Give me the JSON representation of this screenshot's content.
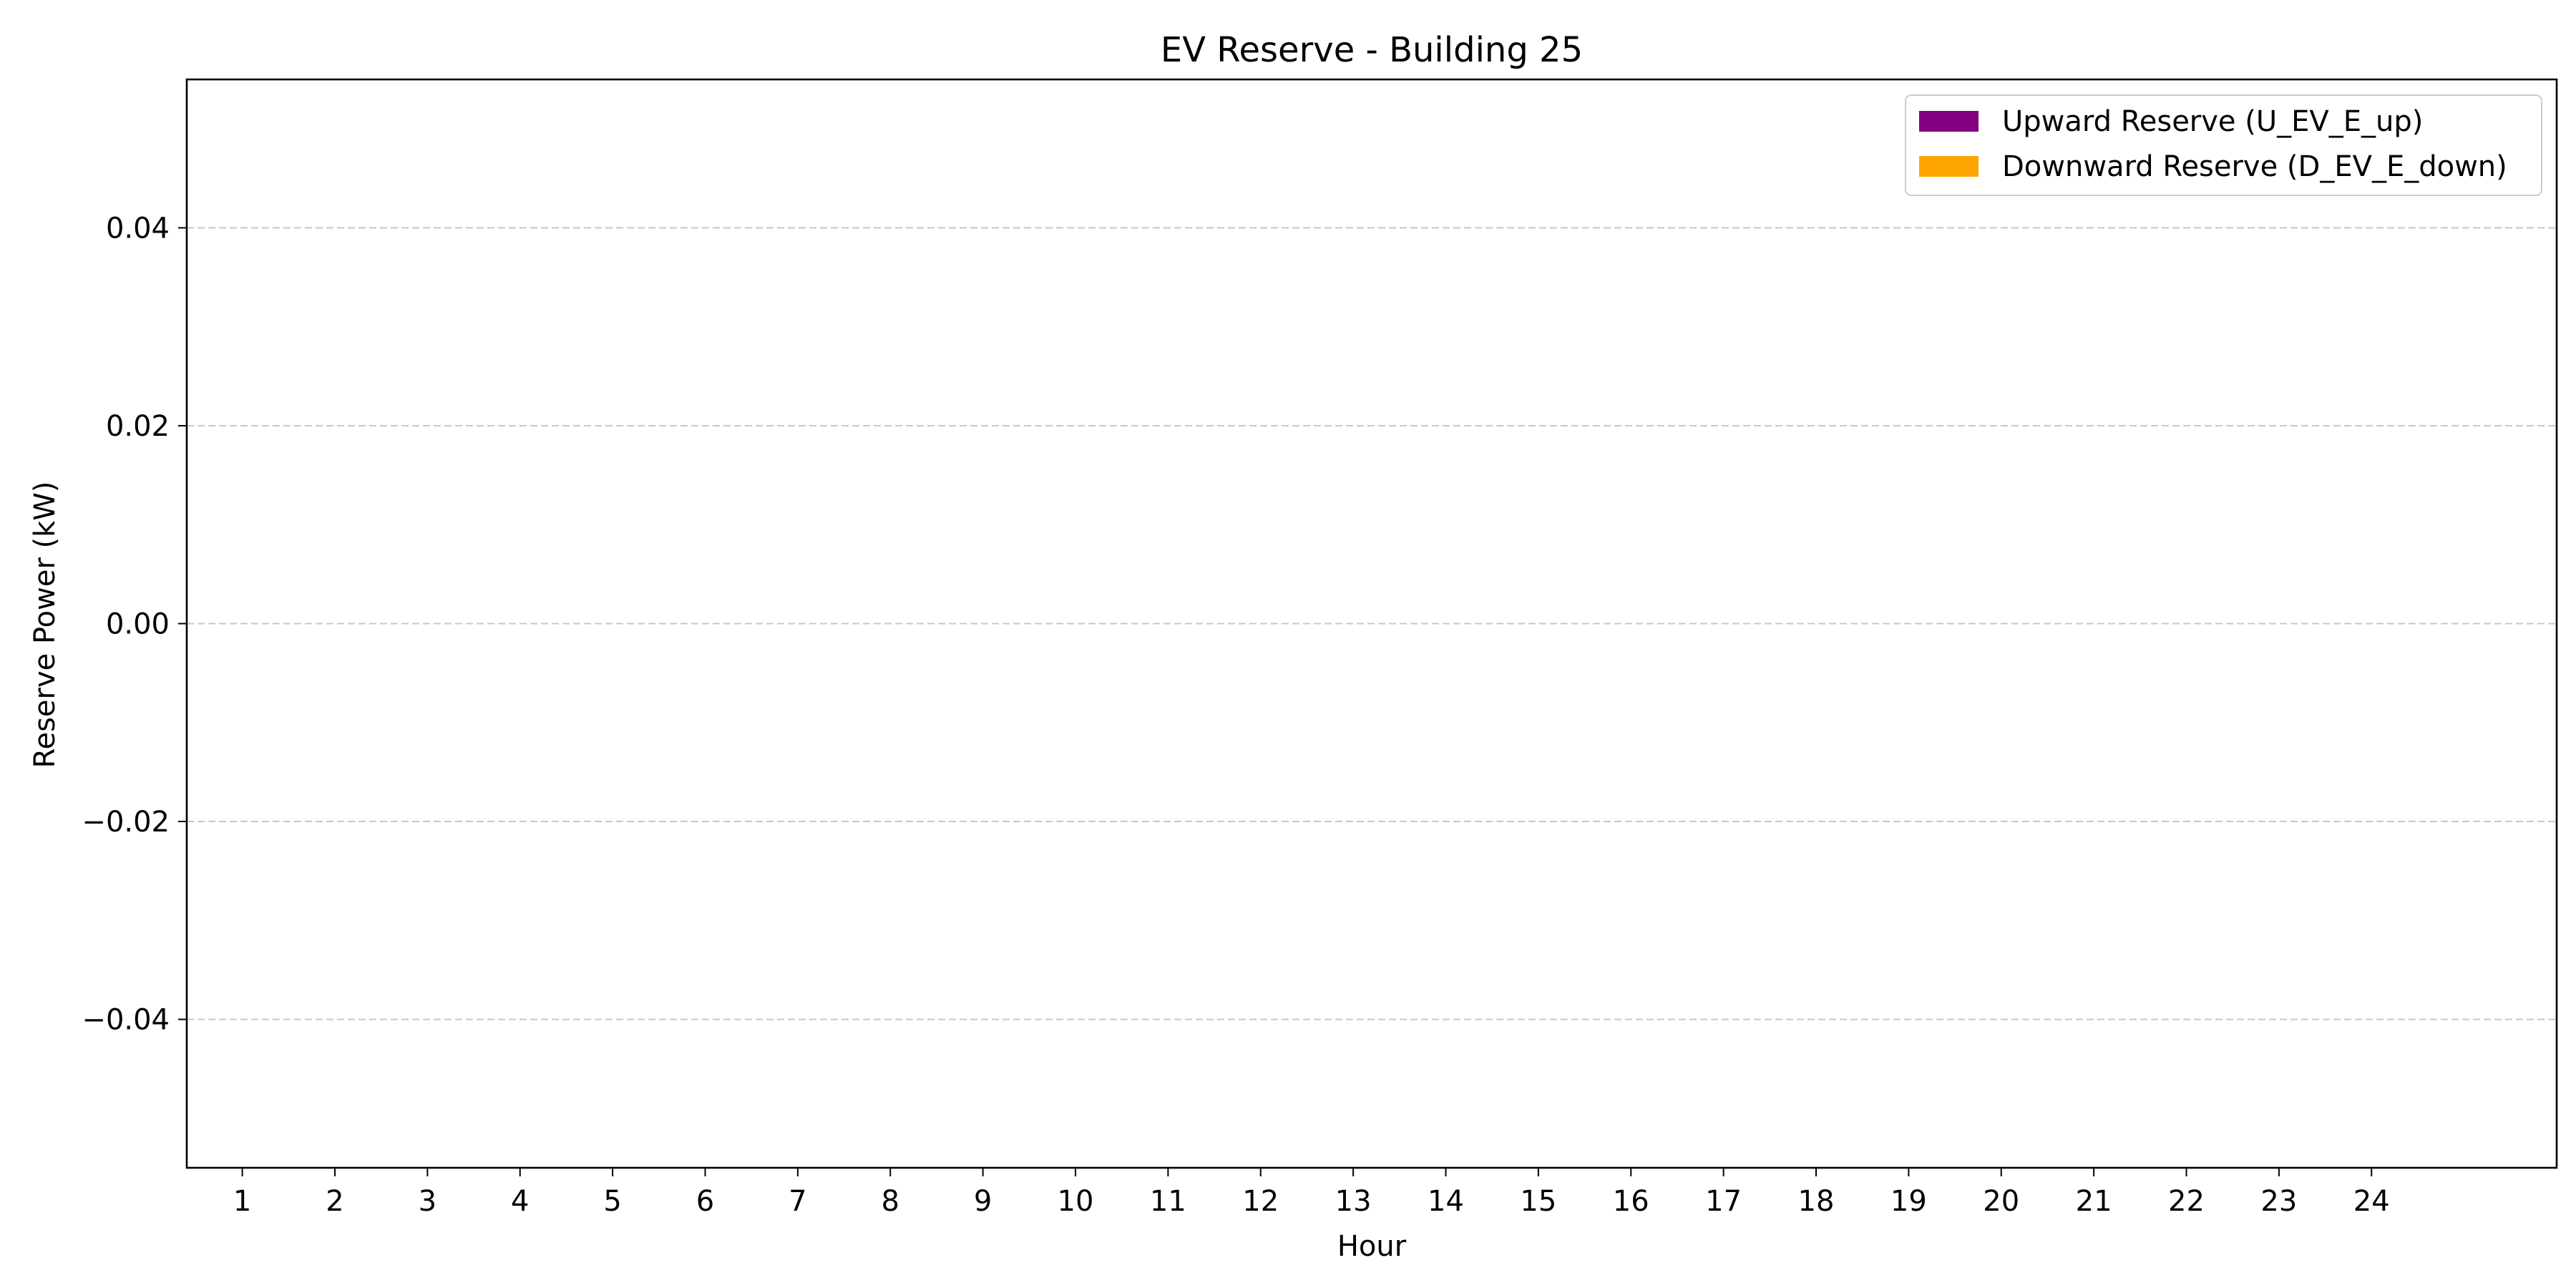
{
  "chart_data": {
    "type": "bar",
    "title": "EV Reserve - Building 25",
    "xlabel": "Hour",
    "ylabel": "Reserve Power (kW)",
    "categories": [
      "1",
      "2",
      "3",
      "4",
      "5",
      "6",
      "7",
      "8",
      "9",
      "10",
      "11",
      "12",
      "13",
      "14",
      "15",
      "16",
      "17",
      "18",
      "19",
      "20",
      "21",
      "22",
      "23",
      "24"
    ],
    "series": [
      {
        "name": "Upward Reserve (U_EV_E_up)",
        "color": "#800080",
        "values": [
          0,
          0,
          0,
          0,
          0,
          0,
          0,
          0,
          0,
          0,
          0,
          0,
          0,
          0,
          0,
          0,
          0,
          0,
          0,
          0,
          0,
          0,
          0,
          0
        ]
      },
      {
        "name": "Downward Reserve (D_EV_E_down)",
        "color": "#ffa500",
        "values": [
          0,
          0,
          0,
          0,
          0,
          0,
          0,
          0,
          0,
          0,
          0,
          0,
          0,
          0,
          0,
          0,
          0,
          0,
          0,
          0,
          0,
          0,
          0,
          0
        ]
      }
    ],
    "ylim": [
      -0.055,
      0.055
    ],
    "xlim": [
      -0.6,
      25.0
    ],
    "yticks": [
      {
        "value": 0.04,
        "label": "0.04"
      },
      {
        "value": 0.02,
        "label": "0.02"
      },
      {
        "value": 0.0,
        "label": "0.00"
      },
      {
        "value": -0.02,
        "label": "−0.02"
      },
      {
        "value": -0.04,
        "label": "−0.04"
      }
    ],
    "grid": "y-dashed",
    "legend_position": "top-right"
  }
}
